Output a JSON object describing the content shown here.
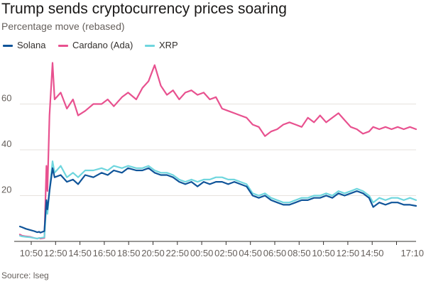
{
  "title": "Trump sends cryptocurrency prices soaring",
  "subtitle": "Percentage move (rebased)",
  "source": "Source: lseg",
  "colors": {
    "solana": "#0f5499",
    "cardano": "#e8518f",
    "xrp": "#6fd6de",
    "grid": "#e6e2de",
    "axis": "#33302e"
  },
  "chart_data": {
    "type": "line",
    "title": "Trump sends cryptocurrency prices soaring",
    "ylabel": "Percentage move (rebased)",
    "xlabel": "",
    "ylim": [
      0,
      80
    ],
    "yticks": [
      20,
      40,
      60
    ],
    "grid": true,
    "legend_position": "top-left",
    "categories": [
      "10:50",
      "12:50",
      "14:50",
      "16:50",
      "18:50",
      "20:50",
      "22:50",
      "00:50",
      "02:50",
      "04:50",
      "06:50",
      "08:50",
      "10:50",
      "12:50",
      "14:50",
      "17:10"
    ],
    "series": [
      {
        "name": "Solana",
        "key": "solana",
        "values": [
          6.5,
          6.2,
          5.5,
          5,
          4.5,
          4,
          4.2,
          3.8,
          4.5,
          18,
          14,
          22,
          32,
          28,
          29,
          26,
          27,
          25,
          29,
          28,
          30,
          29,
          31,
          30,
          32,
          31,
          31,
          32,
          30,
          29,
          29,
          28,
          26,
          25,
          26,
          24,
          26,
          25,
          26,
          26,
          25,
          26,
          25,
          24,
          20,
          19,
          20,
          18,
          17,
          16,
          16,
          17,
          18,
          18,
          19,
          19,
          20,
          19,
          21,
          20,
          21,
          22,
          21,
          19,
          15,
          17,
          16,
          17,
          17,
          16,
          16,
          15.5
        ],
        "x": [
          0,
          0.1,
          0.3,
          0.5,
          0.7,
          0.85,
          0.95,
          1.0,
          1.2,
          1.3,
          1.35,
          1.45,
          1.6,
          1.7,
          2.0,
          2.3,
          2.6,
          2.85,
          3.2,
          3.6,
          4.0,
          4.3,
          4.6,
          5.0,
          5.3,
          5.7,
          6.0,
          6.3,
          6.6,
          6.9,
          7.2,
          7.5,
          7.8,
          8.1,
          8.4,
          8.7,
          9.0,
          9.3,
          9.6,
          9.9,
          10.2,
          10.5,
          10.8,
          11.1,
          11.4,
          11.7,
          12.0,
          12.3,
          12.6,
          12.9,
          13.2,
          13.5,
          13.8,
          14.1,
          14.4,
          14.7,
          15.0,
          15.3,
          15.6,
          15.9,
          16.2,
          16.5,
          16.8,
          17.1,
          17.3,
          17.6,
          17.9,
          18.2,
          18.5,
          18.8,
          19.1,
          19.4
        ]
      },
      {
        "name": "Cardano (Ada)",
        "key": "cardano",
        "values": [
          3,
          2.5,
          2.2,
          2,
          1.5,
          1.2,
          1.5,
          1.2,
          1.5,
          33,
          22,
          55,
          78,
          62,
          65,
          58,
          62,
          55,
          57,
          60,
          60,
          62,
          59,
          63,
          65,
          62,
          67,
          70,
          77,
          68,
          64,
          66,
          62,
          65,
          66,
          64,
          65,
          62,
          63,
          58,
          57,
          56,
          55,
          54,
          51,
          50,
          46,
          48,
          49,
          51,
          52,
          51,
          50,
          54,
          52,
          55,
          52,
          54,
          56,
          53,
          50,
          49,
          47,
          48,
          50,
          49,
          50,
          49,
          50,
          49,
          50,
          49
        ],
        "x": [
          0,
          0.1,
          0.3,
          0.5,
          0.7,
          0.85,
          0.95,
          1.0,
          1.2,
          1.3,
          1.35,
          1.45,
          1.6,
          1.7,
          2.0,
          2.3,
          2.6,
          2.85,
          3.2,
          3.6,
          4.0,
          4.3,
          4.6,
          5.0,
          5.3,
          5.7,
          6.0,
          6.3,
          6.6,
          6.9,
          7.2,
          7.5,
          7.8,
          8.1,
          8.4,
          8.7,
          9.0,
          9.3,
          9.6,
          9.9,
          10.2,
          10.5,
          10.8,
          11.1,
          11.4,
          11.7,
          12.0,
          12.3,
          12.6,
          12.9,
          13.2,
          13.5,
          13.8,
          14.1,
          14.4,
          14.7,
          15.0,
          15.3,
          15.6,
          15.9,
          16.2,
          16.5,
          16.8,
          17.1,
          17.3,
          17.6,
          17.9,
          18.2,
          18.5,
          18.8,
          19.1,
          19.4
        ]
      },
      {
        "name": "XRP",
        "key": "xrp",
        "values": [
          2.5,
          2.2,
          2,
          1.8,
          1.5,
          1.2,
          1.5,
          1.5,
          1.8,
          17,
          12,
          22,
          35,
          30,
          33,
          28,
          30,
          28,
          31,
          31,
          32,
          31,
          33,
          32,
          33,
          32,
          32,
          33,
          31,
          30,
          30,
          29,
          27,
          26,
          27,
          26,
          27,
          27,
          28,
          28,
          27,
          27,
          26,
          25,
          21,
          20,
          21,
          19,
          18,
          17,
          17,
          18,
          19,
          19,
          20,
          20,
          21,
          20,
          22,
          21,
          22,
          23,
          22,
          20,
          17,
          19,
          18,
          19,
          19,
          18,
          19,
          18
        ],
        "x": [
          0,
          0.1,
          0.3,
          0.5,
          0.7,
          0.85,
          0.95,
          1.0,
          1.2,
          1.3,
          1.35,
          1.45,
          1.6,
          1.7,
          2.0,
          2.3,
          2.6,
          2.85,
          3.2,
          3.6,
          4.0,
          4.3,
          4.6,
          5.0,
          5.3,
          5.7,
          6.0,
          6.3,
          6.6,
          6.9,
          7.2,
          7.5,
          7.8,
          8.1,
          8.4,
          8.7,
          9.0,
          9.3,
          9.6,
          9.9,
          10.2,
          10.5,
          10.8,
          11.1,
          11.4,
          11.7,
          12.0,
          12.3,
          12.6,
          12.9,
          13.2,
          13.5,
          13.8,
          14.1,
          14.4,
          14.7,
          15.0,
          15.3,
          15.6,
          15.9,
          16.2,
          16.5,
          16.8,
          17.1,
          17.3,
          17.6,
          17.9,
          18.2,
          18.5,
          18.8,
          19.1,
          19.4
        ]
      }
    ]
  }
}
